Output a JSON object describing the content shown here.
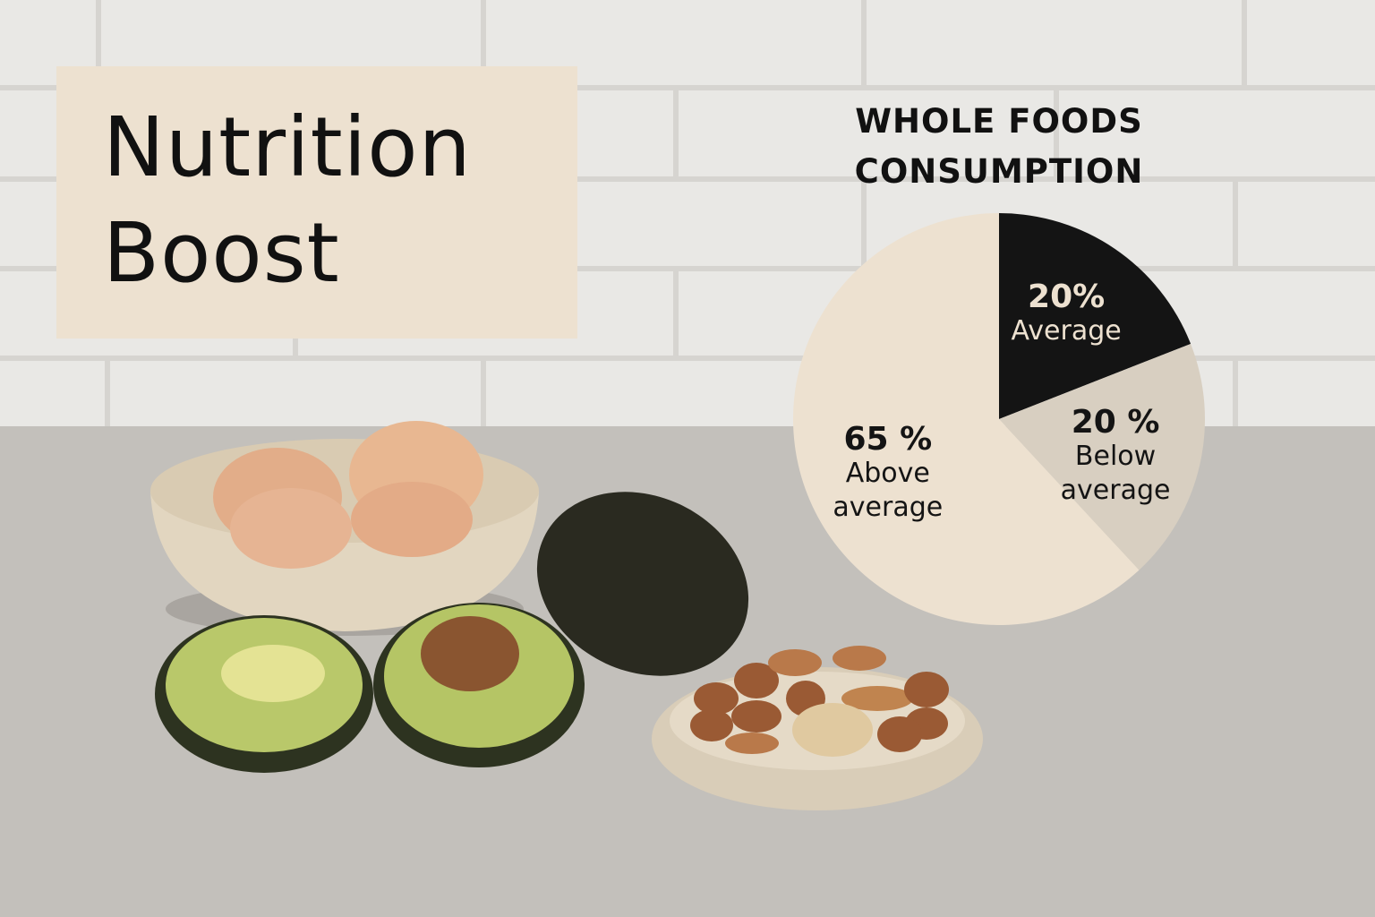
{
  "banner": {
    "title": "Nutrition Boost"
  },
  "chart_data": {
    "type": "pie",
    "title": "WHOLE FOODS CONSUMPTION",
    "categories": [
      "Average",
      "Below average",
      "Above average"
    ],
    "values": [
      20,
      20,
      65
    ],
    "value_labels": [
      "20%",
      "20 %",
      "65 %"
    ],
    "colors": [
      "#141414",
      "#d8cfc1",
      "#ede1d0"
    ],
    "label_colors": [
      "#ede1d0",
      "#141414",
      "#141414"
    ]
  }
}
